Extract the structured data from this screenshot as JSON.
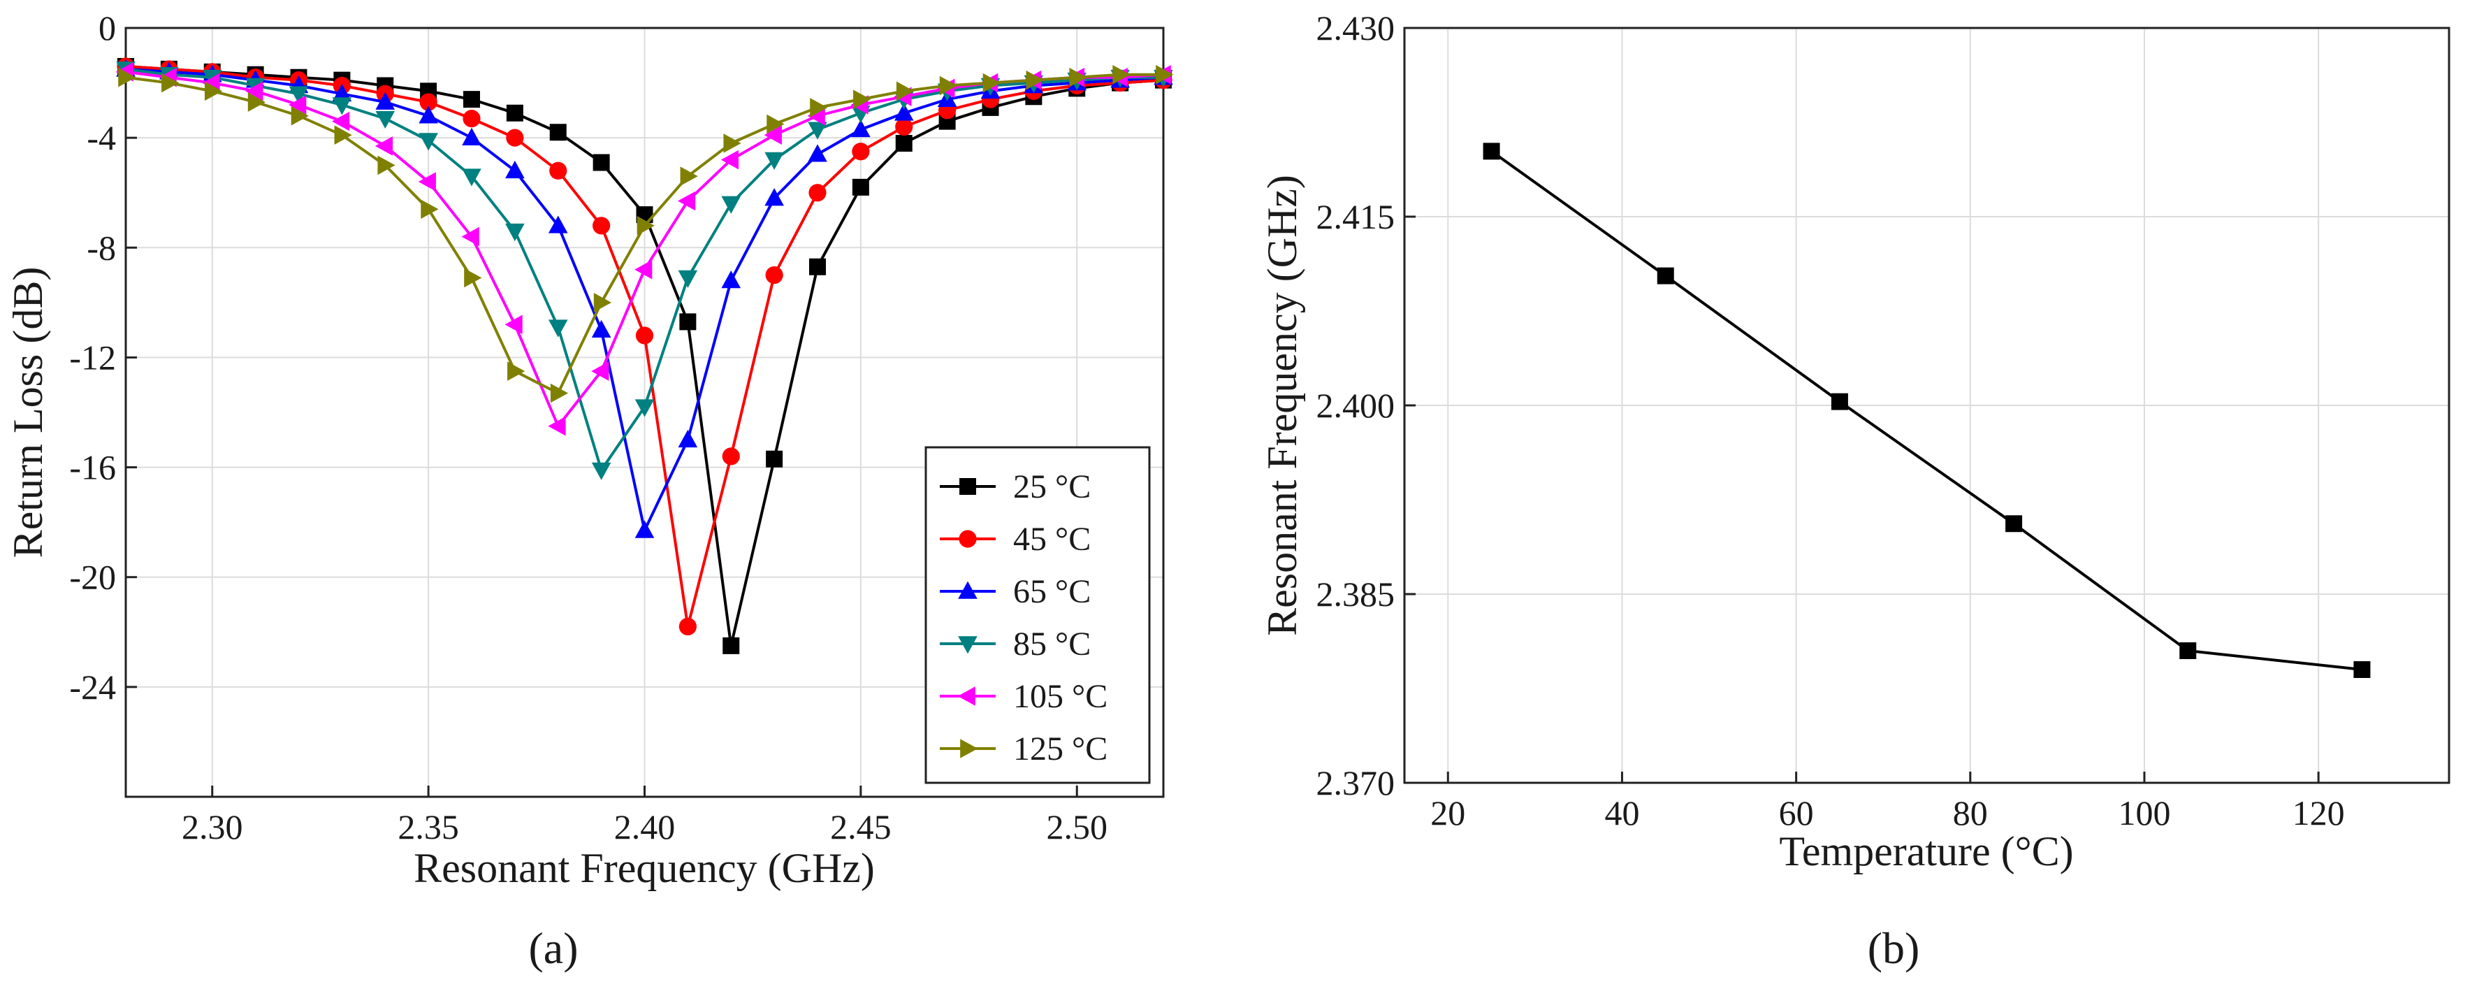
{
  "chart_data": [
    {
      "type": "line",
      "caption": "(a)",
      "title": "",
      "xlabel": "Resonant Frequency (GHz)",
      "ylabel": "Return Loss (dB)",
      "xlim": [
        2.28,
        2.52
      ],
      "ylim": [
        -28,
        0
      ],
      "xticks": [
        2.3,
        2.35,
        2.4,
        2.45,
        2.5
      ],
      "xtick_labels": [
        "2.30",
        "2.35",
        "2.40",
        "2.45",
        "2.50"
      ],
      "yticks": [
        0,
        -4,
        -8,
        -12,
        -16,
        -20,
        -24
      ],
      "ytick_labels": [
        "0",
        "-4",
        "-8",
        "-12",
        "-16",
        "-20",
        "-24"
      ],
      "grid": true,
      "legend_position": "bottom-right",
      "x": [
        2.28,
        2.29,
        2.3,
        2.31,
        2.32,
        2.33,
        2.34,
        2.35,
        2.36,
        2.37,
        2.38,
        2.39,
        2.4,
        2.41,
        2.42,
        2.43,
        2.44,
        2.45,
        2.46,
        2.47,
        2.48,
        2.49,
        2.5,
        2.51,
        2.52
      ],
      "series": [
        {
          "name": "25 °C",
          "color": "#000000",
          "marker": "square",
          "values": [
            -1.4,
            -1.5,
            -1.6,
            -1.7,
            -1.8,
            -1.9,
            -2.1,
            -2.3,
            -2.6,
            -3.1,
            -3.8,
            -4.9,
            -6.8,
            -10.7,
            -22.5,
            -15.7,
            -8.7,
            -5.8,
            -4.2,
            -3.4,
            -2.9,
            -2.5,
            -2.2,
            -2.0,
            -1.9
          ]
        },
        {
          "name": "45 °C",
          "color": "#ff0000",
          "marker": "circle",
          "values": [
            -1.4,
            -1.5,
            -1.6,
            -1.8,
            -1.9,
            -2.1,
            -2.4,
            -2.7,
            -3.3,
            -4.0,
            -5.2,
            -7.2,
            -11.2,
            -21.8,
            -15.6,
            -9.0,
            -6.0,
            -4.5,
            -3.6,
            -3.0,
            -2.6,
            -2.3,
            -2.1,
            -2.0,
            -1.9
          ]
        },
        {
          "name": "65 °C",
          "color": "#0000ff",
          "marker": "triangle-up",
          "values": [
            -1.5,
            -1.6,
            -1.7,
            -1.9,
            -2.1,
            -2.4,
            -2.7,
            -3.2,
            -4.0,
            -5.2,
            -7.2,
            -11.0,
            -18.3,
            -15.0,
            -9.2,
            -6.2,
            -4.6,
            -3.7,
            -3.1,
            -2.6,
            -2.3,
            -2.1,
            -2.0,
            -1.9,
            -1.8
          ]
        },
        {
          "name": "85 °C",
          "color": "#008080",
          "marker": "triangle-down",
          "values": [
            -1.5,
            -1.7,
            -1.8,
            -2.1,
            -2.4,
            -2.8,
            -3.3,
            -4.1,
            -5.4,
            -7.4,
            -10.9,
            -16.1,
            -13.8,
            -9.1,
            -6.4,
            -4.8,
            -3.7,
            -3.1,
            -2.6,
            -2.3,
            -2.1,
            -2.0,
            -1.9,
            -1.8,
            -1.8
          ]
        },
        {
          "name": "105 °C",
          "color": "#ff00ff",
          "marker": "triangle-left",
          "values": [
            -1.6,
            -1.8,
            -2.0,
            -2.3,
            -2.8,
            -3.4,
            -4.3,
            -5.6,
            -7.6,
            -10.8,
            -14.5,
            -12.5,
            -8.8,
            -6.3,
            -4.8,
            -3.9,
            -3.2,
            -2.8,
            -2.5,
            -2.2,
            -2.0,
            -1.9,
            -1.8,
            -1.8,
            -1.7
          ]
        },
        {
          "name": "125 °C",
          "color": "#808000",
          "marker": "triangle-right",
          "values": [
            -1.8,
            -2.0,
            -2.3,
            -2.7,
            -3.2,
            -3.9,
            -5.0,
            -6.6,
            -9.1,
            -12.5,
            -13.3,
            -10.0,
            -7.2,
            -5.4,
            -4.2,
            -3.5,
            -2.9,
            -2.6,
            -2.3,
            -2.1,
            -2.0,
            -1.9,
            -1.8,
            -1.7,
            -1.7
          ]
        }
      ]
    },
    {
      "type": "line",
      "caption": "(b)",
      "title": "",
      "xlabel": "Temperature (°C)",
      "ylabel": "Resonant  Frequency (GHz)",
      "xlim": [
        15,
        135
      ],
      "ylim": [
        2.37,
        2.43
      ],
      "xticks": [
        20,
        40,
        60,
        80,
        100,
        120
      ],
      "xtick_labels": [
        "20",
        "40",
        "60",
        "80",
        "100",
        "120"
      ],
      "yticks": [
        2.37,
        2.385,
        2.4,
        2.415,
        2.43
      ],
      "ytick_labels": [
        "2.370",
        "2.385",
        "2.400",
        "2.415",
        "2.430"
      ],
      "grid": true,
      "series": [
        {
          "name": "Resonant Frequency",
          "color": "#000000",
          "marker": "square",
          "x": [
            25,
            45,
            65,
            85,
            105,
            125
          ],
          "values": [
            2.4202,
            2.4103,
            2.4003,
            2.3906,
            2.3805,
            2.379
          ]
        }
      ]
    }
  ]
}
